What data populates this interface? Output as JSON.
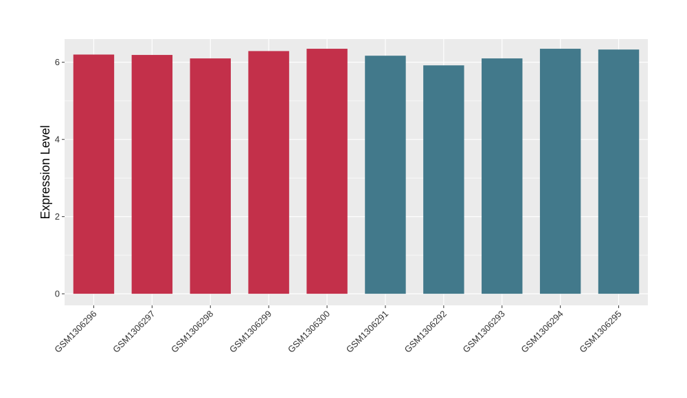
{
  "chart_data": {
    "type": "bar",
    "title": "",
    "xlabel": "",
    "ylabel": "Expression Level",
    "ylim": [
      -0.3,
      6.6
    ],
    "yticks": [
      0,
      2,
      4,
      6
    ],
    "grid": true,
    "categories": [
      "GSM1306296",
      "GSM1306297",
      "GSM1306298",
      "GSM1306299",
      "GSM1306300",
      "GSM1306291",
      "GSM1306292",
      "GSM1306293",
      "GSM1306294",
      "GSM1306295"
    ],
    "values": [
      6.2,
      6.19,
      6.1,
      6.29,
      6.35,
      6.17,
      5.92,
      6.1,
      6.35,
      6.33
    ],
    "colors": [
      "#c3304a",
      "#c3304a",
      "#c3304a",
      "#c3304a",
      "#c3304a",
      "#42798b",
      "#42798b",
      "#42798b",
      "#42798b",
      "#42798b"
    ],
    "panel_color": "#ebebeb",
    "grid_color": "#ffffff"
  }
}
